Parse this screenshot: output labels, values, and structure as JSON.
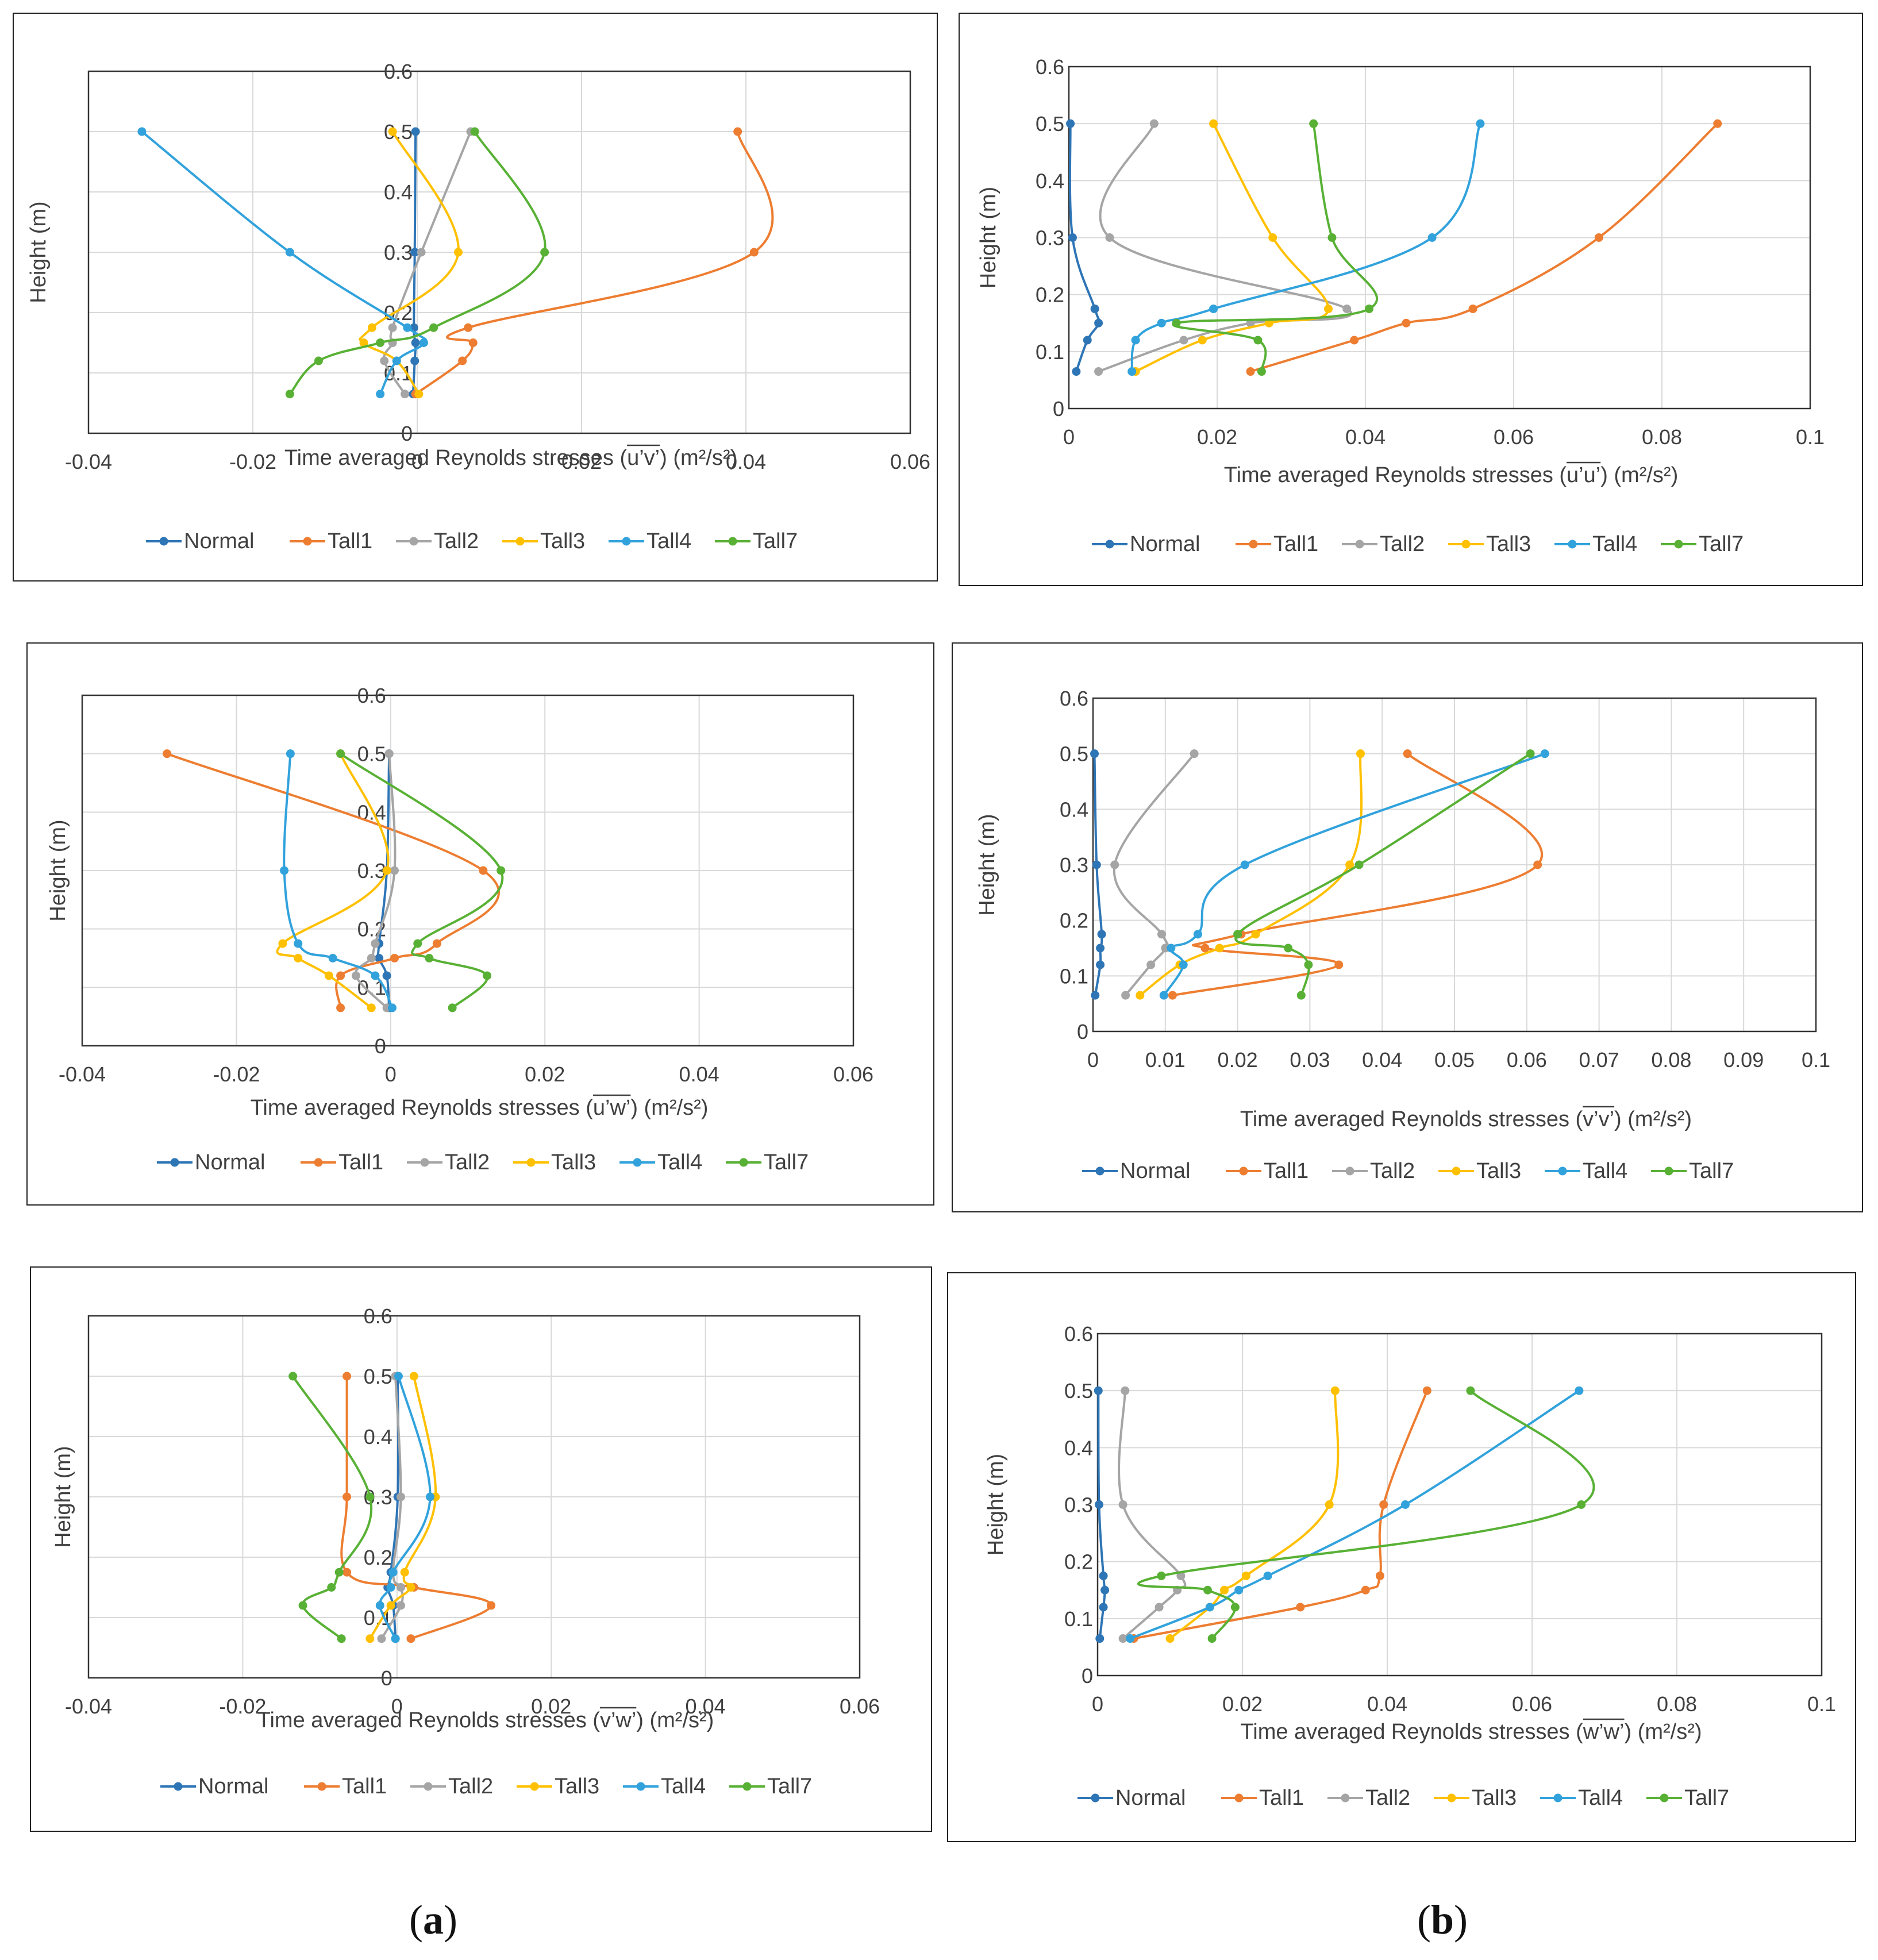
{
  "captions": {
    "a": "a",
    "b": "b"
  },
  "colors": {
    "Normal": "#2e75b6",
    "Tall1": "#ed7d31",
    "Tall2": "#a5a5a5",
    "Tall3": "#ffc000",
    "Tall4": "#31a2dc",
    "Tall7": "#58b135"
  },
  "chart_data": [
    {
      "id": "uv",
      "type": "line",
      "title": "",
      "xlabel": "Time averaged Reynolds stresses (u’v’)  (m²/s²)",
      "overline": "u’v’",
      "ylabel": "Height (m)",
      "xlim": [
        -0.04,
        0.06
      ],
      "ylim": [
        0,
        0.6
      ],
      "xticks": [
        -0.04,
        -0.02,
        0,
        0.02,
        0.04,
        0.06
      ],
      "xtick_labels": [
        "-0.04",
        "-0.02",
        "0",
        "0.02",
        "0.04",
        "0.06"
      ],
      "yticks": [
        0,
        0.1,
        0.2,
        0.3,
        0.4,
        0.5,
        0.6
      ],
      "ytick_labels": [
        "0",
        "0.1",
        "0.2",
        "0.3",
        "0.4",
        "0.5",
        "0.6"
      ],
      "legend": "bottom",
      "series": [
        {
          "name": "Normal",
          "x": [
            -0.0005,
            -0.0003,
            -0.0002,
            -0.0004,
            -0.0003,
            -0.0002
          ],
          "y": [
            0.065,
            0.12,
            0.15,
            0.175,
            0.3,
            0.5
          ]
        },
        {
          "name": "Tall1",
          "x": [
            -0.0002,
            0.0055,
            0.0068,
            0.0062,
            0.041,
            0.039
          ],
          "y": [
            0.065,
            0.12,
            0.15,
            0.175,
            0.3,
            0.5
          ]
        },
        {
          "name": "Tall2",
          "x": [
            -0.0015,
            -0.004,
            -0.003,
            -0.003,
            0.0005,
            0.0065
          ],
          "y": [
            0.065,
            0.12,
            0.15,
            0.175,
            0.3,
            0.5
          ]
        },
        {
          "name": "Tall3",
          "x": [
            0.0002,
            -0.0025,
            -0.0065,
            -0.0055,
            0.005,
            -0.003
          ],
          "y": [
            0.065,
            0.12,
            0.15,
            0.175,
            0.3,
            0.5
          ]
        },
        {
          "name": "Tall4",
          "x": [
            -0.0045,
            -0.0025,
            0.0008,
            -0.0012,
            -0.0155,
            -0.0335
          ],
          "y": [
            0.065,
            0.12,
            0.15,
            0.175,
            0.3,
            0.5
          ]
        },
        {
          "name": "Tall7",
          "x": [
            -0.0155,
            -0.012,
            -0.0045,
            0.002,
            0.0155,
            0.007
          ],
          "y": [
            0.065,
            0.12,
            0.15,
            0.175,
            0.3,
            0.5
          ]
        }
      ]
    },
    {
      "id": "uu",
      "type": "line",
      "title": "",
      "xlabel": "Time averaged Reynolds stresses (u’u’)  (m²/s²)",
      "overline": "u’u’",
      "ylabel": "Height (m)",
      "xlim": [
        0,
        0.1
      ],
      "ylim": [
        0,
        0.6
      ],
      "xticks": [
        0,
        0.02,
        0.04,
        0.06,
        0.08,
        0.1
      ],
      "xtick_labels": [
        "0",
        "0.02",
        "0.04",
        "0.06",
        "0.08",
        "0.1"
      ],
      "yticks": [
        0,
        0.1,
        0.2,
        0.3,
        0.4,
        0.5,
        0.6
      ],
      "ytick_labels": [
        "0",
        "0.1",
        "0.2",
        "0.3",
        "0.4",
        "0.5",
        "0.6"
      ],
      "legend": "bottom",
      "series": [
        {
          "name": "Normal",
          "x": [
            0.001,
            0.0025,
            0.004,
            0.0035,
            0.0005,
            0.0002
          ],
          "y": [
            0.065,
            0.12,
            0.15,
            0.175,
            0.3,
            0.5
          ]
        },
        {
          "name": "Tall1",
          "x": [
            0.0245,
            0.0385,
            0.0455,
            0.0545,
            0.0715,
            0.0875
          ],
          "y": [
            0.065,
            0.12,
            0.15,
            0.175,
            0.3,
            0.5
          ]
        },
        {
          "name": "Tall2",
          "x": [
            0.004,
            0.0155,
            0.0245,
            0.0375,
            0.0055,
            0.0115
          ],
          "y": [
            0.065,
            0.12,
            0.15,
            0.175,
            0.3,
            0.5
          ]
        },
        {
          "name": "Tall3",
          "x": [
            0.009,
            0.018,
            0.027,
            0.035,
            0.0275,
            0.0195
          ],
          "y": [
            0.065,
            0.12,
            0.15,
            0.175,
            0.3,
            0.5
          ]
        },
        {
          "name": "Tall4",
          "x": [
            0.0085,
            0.009,
            0.0125,
            0.0195,
            0.049,
            0.0555
          ],
          "y": [
            0.065,
            0.12,
            0.15,
            0.175,
            0.3,
            0.5
          ]
        },
        {
          "name": "Tall7",
          "x": [
            0.026,
            0.0255,
            0.0145,
            0.0405,
            0.0355,
            0.033
          ],
          "y": [
            0.065,
            0.12,
            0.15,
            0.175,
            0.3,
            0.5
          ]
        }
      ]
    },
    {
      "id": "uw",
      "type": "line",
      "title": "",
      "xlabel": "Time averaged Reynolds stresses (u’w’)  (m²/s²)",
      "overline": "u’w’",
      "ylabel": "Height (m)",
      "xlim": [
        -0.04,
        0.06
      ],
      "ylim": [
        0,
        0.6
      ],
      "xticks": [
        -0.04,
        -0.02,
        0,
        0.02,
        0.04,
        0.06
      ],
      "xtick_labels": [
        "-0.04",
        "-0.02",
        "0",
        "0.02",
        "0.04",
        "0.06"
      ],
      "yticks": [
        0,
        0.1,
        0.2,
        0.3,
        0.4,
        0.5,
        0.6
      ],
      "ytick_labels": [
        "0",
        "0.1",
        "0.2",
        "0.3",
        "0.4",
        "0.5",
        "0.6"
      ],
      "legend": "bottom",
      "series": [
        {
          "name": "Normal",
          "x": [
            -0.0002,
            -0.0005,
            -0.0015,
            -0.0015,
            -0.0005,
            -0.0002
          ],
          "y": [
            0.065,
            0.12,
            0.15,
            0.175,
            0.3,
            0.5
          ]
        },
        {
          "name": "Tall1",
          "x": [
            -0.0065,
            -0.0065,
            0.0005,
            0.006,
            0.012,
            -0.029
          ],
          "y": [
            0.065,
            0.12,
            0.15,
            0.175,
            0.3,
            0.5
          ]
        },
        {
          "name": "Tall2",
          "x": [
            -0.0005,
            -0.0045,
            -0.0025,
            -0.002,
            0.0005,
            -0.0002
          ],
          "y": [
            0.065,
            0.12,
            0.15,
            0.175,
            0.3,
            0.5
          ]
        },
        {
          "name": "Tall3",
          "x": [
            -0.0025,
            -0.008,
            -0.012,
            -0.014,
            -0.0005,
            -0.0065
          ],
          "y": [
            0.065,
            0.12,
            0.15,
            0.175,
            0.3,
            0.5
          ]
        },
        {
          "name": "Tall4",
          "x": [
            0.0002,
            -0.002,
            -0.0075,
            -0.012,
            -0.0138,
            -0.013
          ],
          "y": [
            0.065,
            0.12,
            0.15,
            0.175,
            0.3,
            0.5
          ]
        },
        {
          "name": "Tall7",
          "x": [
            0.008,
            0.0125,
            0.005,
            0.0035,
            0.0143,
            -0.0065
          ],
          "y": [
            0.065,
            0.12,
            0.15,
            0.175,
            0.3,
            0.5
          ]
        }
      ]
    },
    {
      "id": "vv",
      "type": "line",
      "title": "",
      "xlabel": "Time averaged Reynolds stresses (v’v’)  (m²/s²)",
      "overline": "v’v’",
      "ylabel": "Height (m)",
      "xlim": [
        0,
        0.1
      ],
      "ylim": [
        0,
        0.6
      ],
      "xticks": [
        0,
        0.01,
        0.02,
        0.03,
        0.04,
        0.05,
        0.06,
        0.07,
        0.08,
        0.09,
        0.1
      ],
      "xtick_labels": [
        "0",
        "0.01",
        "0.02",
        "0.03",
        "0.04",
        "0.05",
        "0.06",
        "0.07",
        "0.08",
        "0.09",
        "0.1"
      ],
      "yticks": [
        0,
        0.1,
        0.2,
        0.3,
        0.4,
        0.5,
        0.6
      ],
      "ytick_labels": [
        "0",
        "0.1",
        "0.2",
        "0.3",
        "0.4",
        "0.5",
        "0.6"
      ],
      "legend": "bottom",
      "series": [
        {
          "name": "Normal",
          "x": [
            0.0003,
            0.001,
            0.001,
            0.0012,
            0.0005,
            0.0002
          ],
          "y": [
            0.065,
            0.12,
            0.15,
            0.175,
            0.3,
            0.5
          ]
        },
        {
          "name": "Tall1",
          "x": [
            0.011,
            0.034,
            0.0155,
            0.0205,
            0.0615,
            0.0435
          ],
          "y": [
            0.065,
            0.12,
            0.15,
            0.175,
            0.3,
            0.5
          ]
        },
        {
          "name": "Tall2",
          "x": [
            0.0045,
            0.008,
            0.01,
            0.0095,
            0.003,
            0.014
          ],
          "y": [
            0.065,
            0.12,
            0.15,
            0.175,
            0.3,
            0.5
          ]
        },
        {
          "name": "Tall3",
          "x": [
            0.0065,
            0.012,
            0.0175,
            0.0225,
            0.0355,
            0.037
          ],
          "y": [
            0.065,
            0.12,
            0.15,
            0.175,
            0.3,
            0.5
          ]
        },
        {
          "name": "Tall4",
          "x": [
            0.0098,
            0.0125,
            0.0108,
            0.0145,
            0.021,
            0.0625
          ],
          "y": [
            0.065,
            0.12,
            0.15,
            0.175,
            0.3,
            0.5
          ]
        },
        {
          "name": "Tall7",
          "x": [
            0.0288,
            0.0298,
            0.027,
            0.02,
            0.0368,
            0.0605
          ],
          "y": [
            0.065,
            0.12,
            0.15,
            0.175,
            0.3,
            0.5
          ]
        }
      ]
    },
    {
      "id": "vw",
      "type": "line",
      "title": "",
      "xlabel": "Time averaged Reynolds stresses (v’w’)  (m²/s²)",
      "overline": "v’w’",
      "ylabel": "Height (m)",
      "xlim": [
        -0.04,
        0.06
      ],
      "ylim": [
        0,
        0.6
      ],
      "xticks": [
        -0.04,
        -0.02,
        0,
        0.02,
        0.04,
        0.06
      ],
      "xtick_labels": [
        "-0.04",
        "-0.02",
        "0",
        "0.02",
        "0.04",
        "0.06"
      ],
      "yticks": [
        0,
        0.1,
        0.2,
        0.3,
        0.4,
        0.5,
        0.6
      ],
      "ytick_labels": [
        "0",
        "0.1",
        "0.2",
        "0.3",
        "0.4",
        "0.5",
        "0.6"
      ],
      "legend": "bottom",
      "series": [
        {
          "name": "Normal",
          "x": [
            -0.0002,
            -0.0005,
            -0.0012,
            -0.0008,
            0.0001,
            0.0001
          ],
          "y": [
            0.065,
            0.12,
            0.15,
            0.175,
            0.3,
            0.5
          ]
        },
        {
          "name": "Tall1",
          "x": [
            0.0018,
            0.0122,
            0.0022,
            -0.0065,
            -0.0065,
            -0.0065
          ],
          "y": [
            0.065,
            0.12,
            0.15,
            0.175,
            0.3,
            0.5
          ]
        },
        {
          "name": "Tall2",
          "x": [
            -0.002,
            0.0005,
            0.0005,
            -0.0005,
            0.0005,
            -0.0002
          ],
          "y": [
            0.065,
            0.12,
            0.15,
            0.175,
            0.3,
            0.5
          ]
        },
        {
          "name": "Tall3",
          "x": [
            -0.0035,
            -0.0008,
            0.0018,
            0.001,
            0.005,
            0.0022
          ],
          "y": [
            0.065,
            0.12,
            0.15,
            0.175,
            0.3,
            0.5
          ]
        },
        {
          "name": "Tall4",
          "x": [
            -0.0002,
            -0.0022,
            -0.0008,
            -0.0005,
            0.0043,
            0.0002
          ],
          "y": [
            0.065,
            0.12,
            0.15,
            0.175,
            0.3,
            0.5
          ]
        },
        {
          "name": "Tall7",
          "x": [
            -0.0072,
            -0.0122,
            -0.0085,
            -0.0075,
            -0.0035,
            -0.0135
          ],
          "y": [
            0.065,
            0.12,
            0.15,
            0.175,
            0.3,
            0.5
          ]
        }
      ]
    },
    {
      "id": "ww",
      "type": "line",
      "title": "",
      "xlabel": "Time averaged Reynolds stresses (w’w’)  (m²/s²)",
      "overline": "w’w’",
      "ylabel": "Height (m)",
      "xlim": [
        0,
        0.1
      ],
      "ylim": [
        0,
        0.6
      ],
      "xticks": [
        0,
        0.02,
        0.04,
        0.06,
        0.08,
        0.1
      ],
      "xtick_labels": [
        "0",
        "0.02",
        "0.04",
        "0.06",
        "0.08",
        "0.1"
      ],
      "yticks": [
        0,
        0.1,
        0.2,
        0.3,
        0.4,
        0.5,
        0.6
      ],
      "ytick_labels": [
        "0",
        "0.1",
        "0.2",
        "0.3",
        "0.4",
        "0.5",
        "0.6"
      ],
      "legend": "bottom",
      "series": [
        {
          "name": "Normal",
          "x": [
            0.0003,
            0.0008,
            0.001,
            0.0008,
            0.0002,
            0.0001
          ],
          "y": [
            0.065,
            0.12,
            0.15,
            0.175,
            0.3,
            0.5
          ]
        },
        {
          "name": "Tall1",
          "x": [
            0.005,
            0.028,
            0.037,
            0.039,
            0.0395,
            0.0455
          ],
          "y": [
            0.065,
            0.12,
            0.15,
            0.175,
            0.3,
            0.5
          ]
        },
        {
          "name": "Tall2",
          "x": [
            0.0035,
            0.0085,
            0.011,
            0.0115,
            0.0035,
            0.0038
          ],
          "y": [
            0.065,
            0.12,
            0.15,
            0.175,
            0.3,
            0.5
          ]
        },
        {
          "name": "Tall3",
          "x": [
            0.01,
            0.0155,
            0.0175,
            0.0205,
            0.032,
            0.0328
          ],
          "y": [
            0.065,
            0.12,
            0.15,
            0.175,
            0.3,
            0.5
          ]
        },
        {
          "name": "Tall4",
          "x": [
            0.0045,
            0.0155,
            0.0195,
            0.0235,
            0.0425,
            0.0665
          ],
          "y": [
            0.065,
            0.12,
            0.15,
            0.175,
            0.3,
            0.5
          ]
        },
        {
          "name": "Tall7",
          "x": [
            0.0158,
            0.019,
            0.0152,
            0.0088,
            0.0668,
            0.0515
          ],
          "y": [
            0.065,
            0.12,
            0.15,
            0.175,
            0.3,
            0.5
          ]
        }
      ]
    }
  ]
}
